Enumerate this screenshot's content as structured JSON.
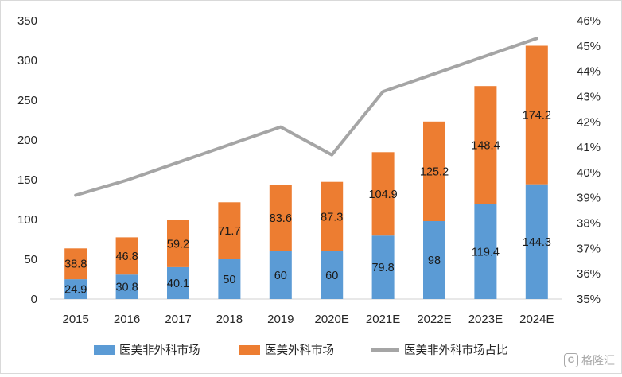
{
  "chart_data": {
    "type": "bar",
    "stacked": true,
    "categories": [
      "2015",
      "2016",
      "2017",
      "2018",
      "2019",
      "2020E",
      "2021E",
      "2022E",
      "2023E",
      "2024E"
    ],
    "series": [
      {
        "name": "医美非外科市场",
        "type": "bar",
        "axis": "left",
        "color": "#5b9bd5",
        "values": [
          24.9,
          30.8,
          40.1,
          50,
          60,
          60,
          79.8,
          98,
          119.4,
          144.3
        ],
        "labels": [
          "24.9",
          "30.8",
          "40.1",
          "50",
          "60",
          "60",
          "79.8",
          "98",
          "119.4",
          "144.3"
        ]
      },
      {
        "name": "医美外科市场",
        "type": "bar",
        "axis": "left",
        "color": "#ed7d31",
        "values": [
          38.8,
          46.8,
          59.2,
          71.7,
          83.6,
          87.3,
          104.9,
          125.2,
          148.4,
          174.2
        ],
        "labels": [
          "38.8",
          "46.8",
          "59.2",
          "71.7",
          "83.6",
          "87.3",
          "104.9",
          "125.2",
          "148.4",
          "174.2"
        ]
      },
      {
        "name": "医美非外科市场占比",
        "type": "line",
        "axis": "right",
        "color": "#a5a5a5",
        "values": [
          0.391,
          0.397,
          0.404,
          0.411,
          0.418,
          0.407,
          0.432,
          0.439,
          0.446,
          0.453
        ]
      }
    ],
    "y_left": {
      "min": 0,
      "max": 350,
      "step": 50,
      "ticks": [
        "0",
        "50",
        "100",
        "150",
        "200",
        "250",
        "300",
        "350"
      ]
    },
    "y_right": {
      "min": 0.35,
      "max": 0.46,
      "ticks": [
        "35%",
        "36%",
        "37%",
        "38%",
        "39%",
        "40%",
        "41%",
        "42%",
        "43%",
        "44%",
        "45%",
        "46%"
      ]
    },
    "grid": false,
    "legend_position": "bottom"
  },
  "watermark": {
    "icon_text": "G",
    "text": "格隆汇"
  }
}
